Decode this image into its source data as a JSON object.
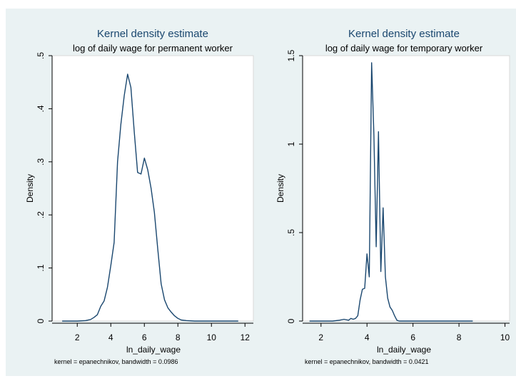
{
  "colors": {
    "line": "#1a476f",
    "title": "#1a476f",
    "background": "#eaf2f3",
    "plot": "#ffffff"
  },
  "chart_data": [
    {
      "type": "line",
      "title": "Kernel density estimate",
      "subtitle": "log of daily wage for permanent worker",
      "xlabel": "ln_daily_wage",
      "ylabel": "Density",
      "note": "kernel = epanechnikov, bandwidth = 0.0986",
      "xlim": [
        0.5,
        12.5
      ],
      "ylim": [
        0,
        0.5
      ],
      "xticks": [
        2,
        4,
        6,
        8,
        10,
        12
      ],
      "xtick_labels": [
        "2",
        "4",
        "6",
        "8",
        "10",
        "12"
      ],
      "yticks": [
        0,
        0.1,
        0.2,
        0.3,
        0.4,
        0.5
      ],
      "ytick_labels": [
        "0",
        ".1",
        ".2",
        ".3",
        ".4",
        ".5"
      ],
      "grid": false,
      "x": [
        1.1,
        1.5,
        2.0,
        2.5,
        2.8,
        3.0,
        3.2,
        3.4,
        3.6,
        3.8,
        4.0,
        4.2,
        4.4,
        4.6,
        4.8,
        5.0,
        5.2,
        5.4,
        5.6,
        5.8,
        6.0,
        6.2,
        6.4,
        6.6,
        6.8,
        7.0,
        7.2,
        7.4,
        7.6,
        7.8,
        8.0,
        8.2,
        8.5,
        9.0,
        10.0,
        11.0,
        11.6
      ],
      "y": [
        0.0,
        0.0,
        0.0,
        0.001,
        0.003,
        0.007,
        0.012,
        0.028,
        0.038,
        0.064,
        0.105,
        0.148,
        0.3,
        0.37,
        0.425,
        0.465,
        0.44,
        0.355,
        0.28,
        0.277,
        0.307,
        0.285,
        0.25,
        0.205,
        0.135,
        0.07,
        0.04,
        0.025,
        0.017,
        0.01,
        0.005,
        0.002,
        0.001,
        0.0,
        0.0,
        0.0,
        0.0
      ]
    },
    {
      "type": "line",
      "title": "Kernel density estimate",
      "subtitle": "log of daily wage for temporary worker",
      "xlabel": "ln_daily_wage",
      "ylabel": "Density",
      "note": "kernel = epanechnikov, bandwidth = 0.0421",
      "xlim": [
        1.2,
        10.2
      ],
      "ylim": [
        0,
        1.5
      ],
      "xticks": [
        2,
        4,
        6,
        8,
        10
      ],
      "xtick_labels": [
        "2",
        "4",
        "6",
        "8",
        "10"
      ],
      "yticks": [
        0,
        0.5,
        1,
        1.5
      ],
      "ytick_labels": [
        "0",
        ".5",
        "1",
        "1.5"
      ],
      "grid": false,
      "x": [
        1.5,
        2.0,
        2.5,
        2.8,
        3.0,
        3.2,
        3.3,
        3.4,
        3.5,
        3.6,
        3.7,
        3.8,
        3.9,
        4.0,
        4.1,
        4.2,
        4.3,
        4.4,
        4.5,
        4.6,
        4.7,
        4.8,
        4.9,
        5.0,
        5.1,
        5.2,
        5.3,
        5.4,
        5.5,
        5.6,
        5.7,
        5.8,
        6.0,
        6.2,
        6.4,
        7.0,
        8.0,
        8.6
      ],
      "y": [
        0.0,
        0.0,
        0.0,
        0.005,
        0.01,
        0.005,
        0.015,
        0.01,
        0.015,
        0.03,
        0.12,
        0.18,
        0.185,
        0.38,
        0.25,
        1.46,
        1.05,
        0.42,
        1.07,
        0.28,
        0.64,
        0.25,
        0.13,
        0.08,
        0.06,
        0.03,
        0.005,
        0.0,
        0.0,
        0.0,
        0.0,
        0.0,
        0.0,
        0.0,
        0.0,
        0.0,
        0.0,
        0.0
      ]
    }
  ]
}
